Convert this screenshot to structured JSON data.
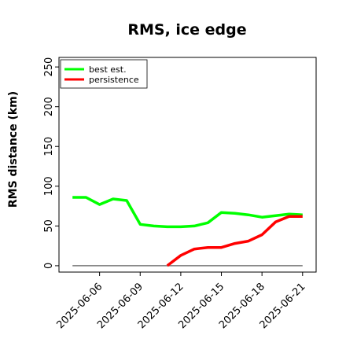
{
  "chart_data": {
    "type": "line",
    "title": "RMS, ice edge",
    "xlabel": "",
    "ylabel": "RMS distance (km)",
    "ylim": [
      -8,
      262
    ],
    "yticks": [
      0,
      50,
      100,
      150,
      200,
      250
    ],
    "xlim": [
      "2025-06-03",
      "2025-06-22"
    ],
    "xticks": [
      "2025-06-06",
      "2025-06-09",
      "2025-06-12",
      "2025-06-15",
      "2025-06-18",
      "2025-06-21"
    ],
    "grid": false,
    "legend": "top-left",
    "series": [
      {
        "name": "best est.",
        "color": "#00ff00",
        "x": [
          "2025-06-04",
          "2025-06-05",
          "2025-06-06",
          "2025-06-07",
          "2025-06-08",
          "2025-06-09",
          "2025-06-10",
          "2025-06-11",
          "2025-06-12",
          "2025-06-13",
          "2025-06-14",
          "2025-06-15",
          "2025-06-16",
          "2025-06-17",
          "2025-06-18",
          "2025-06-19",
          "2025-06-20",
          "2025-06-21"
        ],
        "y": [
          86,
          86,
          77,
          84,
          82,
          52,
          50,
          49,
          49,
          50,
          54,
          67,
          66,
          64,
          61,
          63,
          65,
          64
        ]
      },
      {
        "name": "persistence",
        "color": "#ff0000",
        "x": [
          "2025-06-11",
          "2025-06-12",
          "2025-06-13",
          "2025-06-14",
          "2025-06-15",
          "2025-06-16",
          "2025-06-17",
          "2025-06-18",
          "2025-06-19",
          "2025-06-20",
          "2025-06-21"
        ],
        "y": [
          0,
          13,
          21,
          23,
          23,
          28,
          31,
          39,
          55,
          62,
          62
        ]
      },
      {
        "name": "",
        "color": "#777777",
        "x": [
          "2025-06-04",
          "2025-06-21"
        ],
        "y": [
          0,
          0
        ]
      }
    ]
  }
}
